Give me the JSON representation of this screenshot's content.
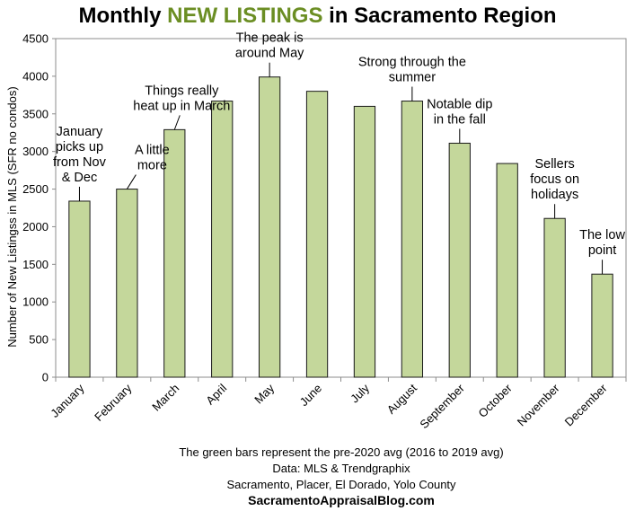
{
  "title": {
    "prefix": "Monthly ",
    "highlight": "NEW LISTINGS",
    "suffix": " in Sacramento Region"
  },
  "colors": {
    "bar_fill": "#c4d79b",
    "bar_stroke": "#1a1a1a",
    "title_highlight": "#6b8e23"
  },
  "footer": {
    "line1": "The green bars represent the pre-2020 avg (2016 to 2019 avg)",
    "line2": "Data: MLS & Trendgraphix",
    "line3": "Sacramento, Placer, El Dorado, Yolo County",
    "line4": "SacramentoAppraisalBlog.com"
  },
  "chart_data": {
    "type": "bar",
    "ylabel": "Number of New Listingss in MLS (SFR no condos)",
    "ylim": [
      0,
      4500
    ],
    "yticks": [
      0,
      500,
      1000,
      1500,
      2000,
      2500,
      3000,
      3500,
      4000,
      4500
    ],
    "grid": false,
    "categories": [
      "January",
      "February",
      "March",
      "April",
      "May",
      "June",
      "July",
      "August",
      "September",
      "October",
      "November",
      "December"
    ],
    "values": [
      2340,
      2500,
      3290,
      3670,
      3990,
      3800,
      3600,
      3670,
      3110,
      2840,
      2110,
      1370
    ],
    "annotations": [
      {
        "category": "January",
        "lines": [
          "January",
          "picks up",
          "from Nov",
          "& Dec"
        ]
      },
      {
        "category": "February",
        "lines": [
          "A little",
          "more"
        ]
      },
      {
        "category": "March",
        "lines": [
          "Things really",
          "heat up in March"
        ]
      },
      {
        "category": "May",
        "lines": [
          "The peak is",
          "around May"
        ]
      },
      {
        "category": "August",
        "lines": [
          "Strong through the",
          "summer"
        ]
      },
      {
        "category": "September",
        "lines": [
          "Notable dip",
          "in the fall"
        ]
      },
      {
        "category": "November",
        "lines": [
          "Sellers",
          "focus on",
          "holidays"
        ]
      },
      {
        "category": "December",
        "lines": [
          "The low",
          "point"
        ]
      }
    ]
  }
}
